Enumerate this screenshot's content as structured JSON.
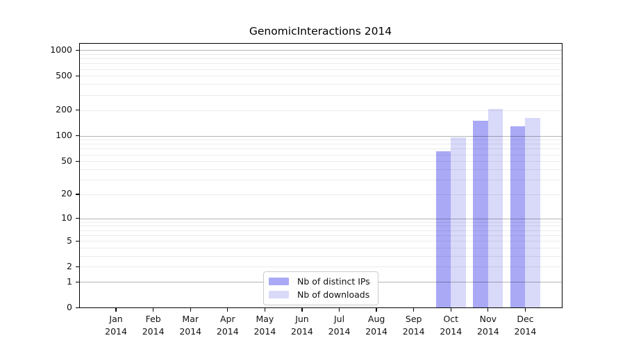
{
  "chart_data": {
    "type": "bar",
    "title": "GenomicInteractions 2014",
    "categories": [
      "Jan 2014",
      "Feb 2014",
      "Mar 2014",
      "Apr 2014",
      "May 2014",
      "Jun 2014",
      "Jul 2014",
      "Aug 2014",
      "Sep 2014",
      "Oct 2014",
      "Nov 2014",
      "Dec 2014"
    ],
    "series": [
      {
        "name": "Nb of distinct IPs",
        "color": "#a9a9f6",
        "values": [
          0,
          0,
          0,
          0,
          0,
          0,
          0,
          0,
          0,
          65,
          150,
          130
        ]
      },
      {
        "name": "Nb of downloads",
        "color": "#d9d9f9",
        "values": [
          0,
          0,
          0,
          0,
          0,
          0,
          0,
          0,
          0,
          96,
          207,
          162
        ]
      }
    ],
    "y_ticks": [
      0,
      1,
      2,
      5,
      10,
      20,
      50,
      100,
      200,
      500,
      1000
    ],
    "y_scale": "log10(1+x)",
    "ylim": [
      0,
      1200
    ],
    "grid": true,
    "legend_position": "inside-bottom-center"
  },
  "colors": {
    "background": "#ffffff",
    "frame": "#000000",
    "grid_major": "rgba(0,0,0,0.29)",
    "grid_minor": "rgba(0,0,0,0.075)",
    "text": "#111111"
  }
}
